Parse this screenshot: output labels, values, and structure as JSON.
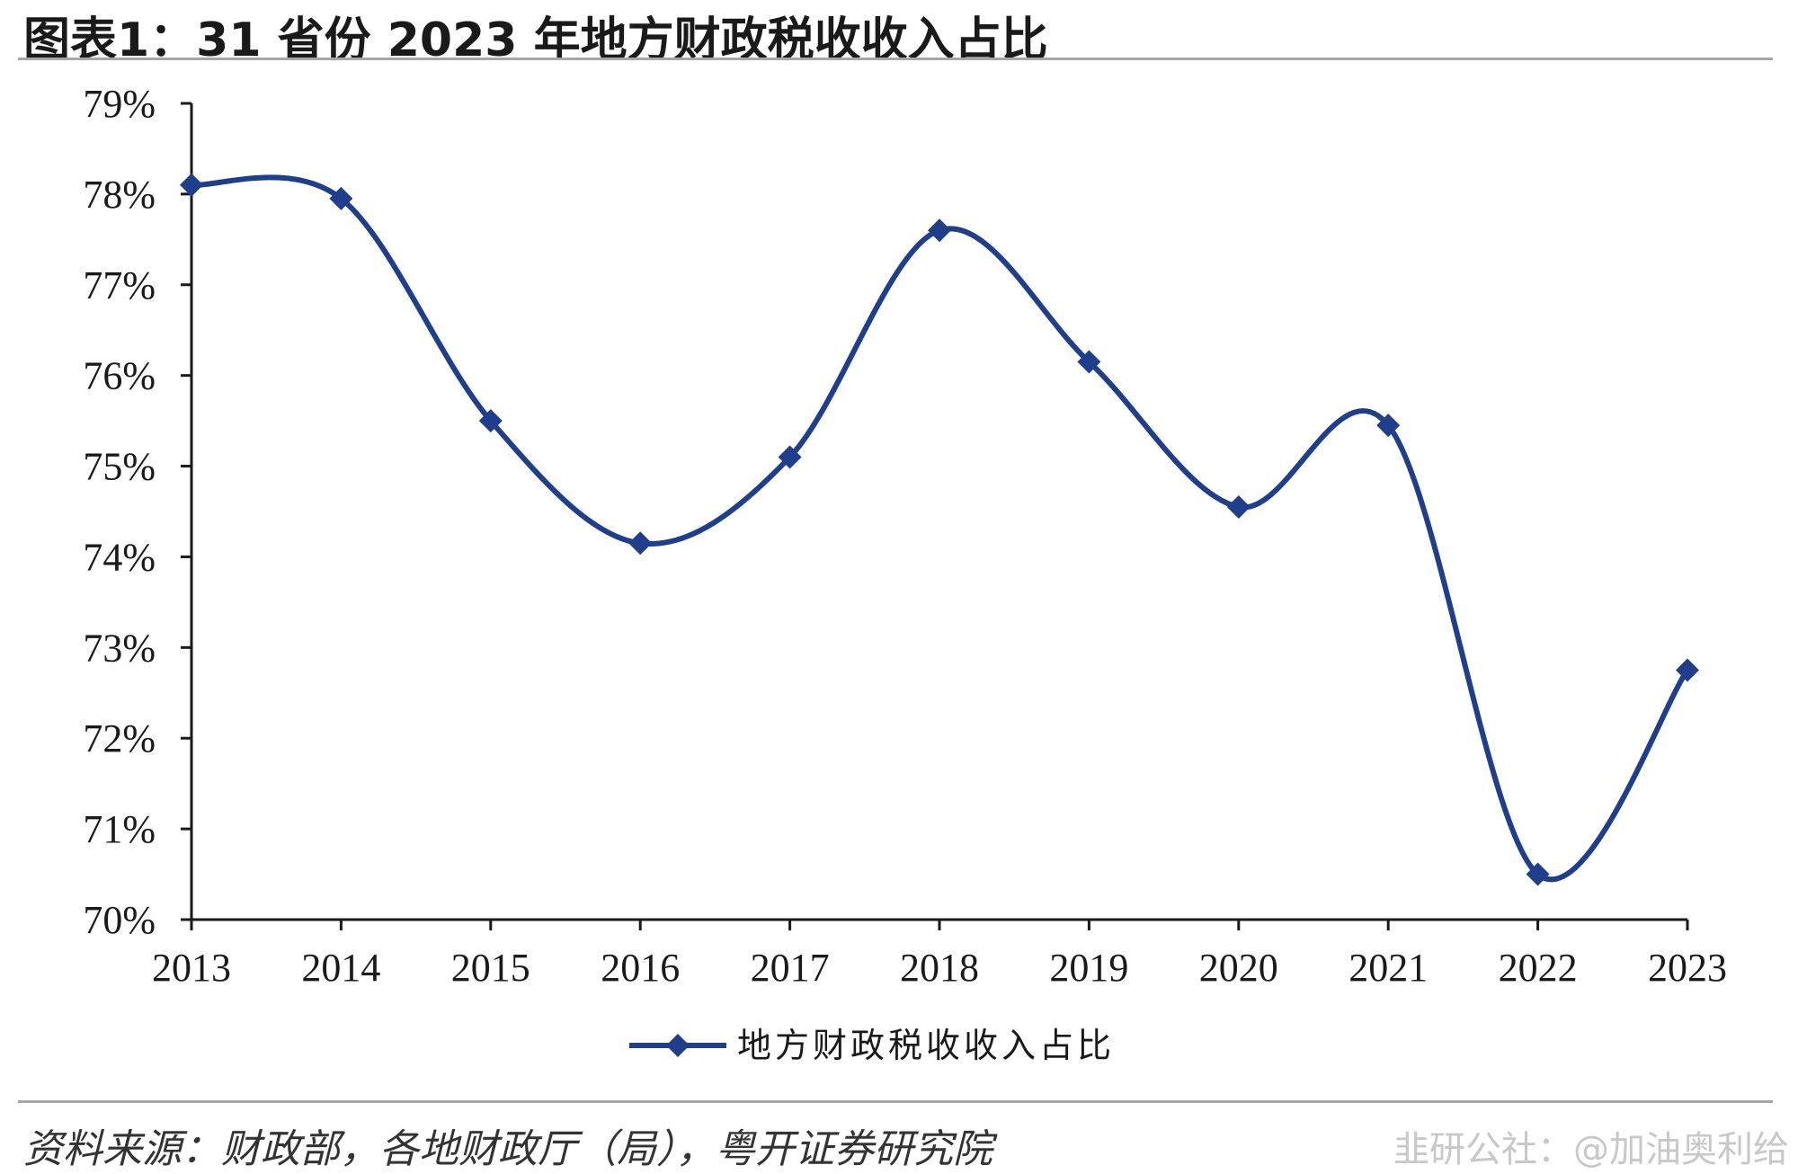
{
  "header": {
    "title": "图表1：31 省份 2023 年地方财政税收收入占比"
  },
  "footer": {
    "source": "资料来源：财政部，各地财政厅（局），粤开证券研究院",
    "watermark": "韭研公社：@加油奥利给"
  },
  "colors": {
    "series": "#1f3e8c",
    "axis": "#1a1a1a",
    "rule": "#a6a6a6"
  },
  "chart_data": {
    "type": "line",
    "smooth": true,
    "title": "",
    "xlabel": "",
    "ylabel": "",
    "x": [
      "2013",
      "2014",
      "2015",
      "2016",
      "2017",
      "2018",
      "2019",
      "2020",
      "2021",
      "2022",
      "2023"
    ],
    "series": [
      {
        "name": "地方财政税收收入占比",
        "marker": "diamond",
        "values": [
          78.1,
          77.95,
          75.5,
          74.15,
          75.1,
          77.6,
          76.15,
          74.55,
          75.45,
          70.5,
          72.75
        ]
      }
    ],
    "ylim": [
      70,
      79
    ],
    "yticks": [
      "70%",
      "71%",
      "72%",
      "73%",
      "74%",
      "75%",
      "76%",
      "77%",
      "78%",
      "79%"
    ],
    "grid": false,
    "legend_position": "bottom-center"
  }
}
